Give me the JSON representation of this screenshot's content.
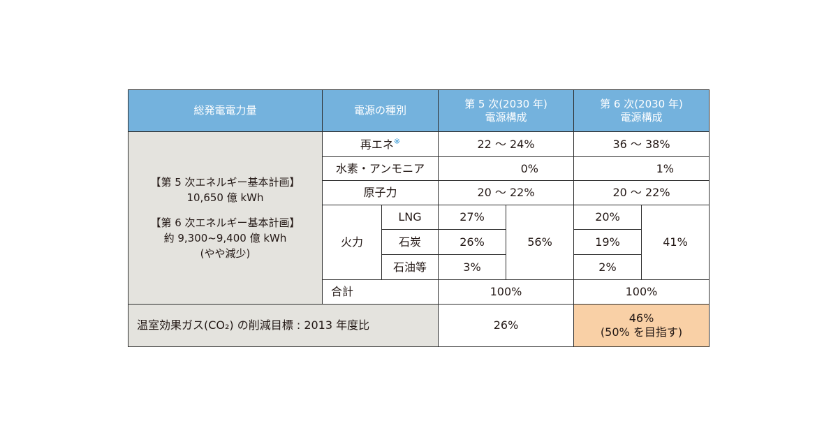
{
  "chart_data": {
    "type": "table",
    "header": {
      "total": "総発電電力量",
      "source_type": "電源の種別",
      "plan5": [
        "第 5 次(2030 年)",
        "電源構成"
      ],
      "plan6": [
        "第 6 次(2030 年)",
        "電源構成"
      ]
    },
    "total_generation": {
      "plan5_title": "【第 5 次エネルギー基本計画】",
      "plan5_value": "10,650 億 kWh",
      "plan6_title": "【第 6 次エネルギー基本計画】",
      "plan6_value": "約 9,300~9,400 億 kWh",
      "plan6_note": "(やや減少)"
    },
    "rows": {
      "renewable": {
        "label": "再エネ",
        "note_mark": "※",
        "plan5": "22 ～ 24%",
        "plan6": "36 ～ 38%"
      },
      "hydrogen": {
        "label": "水素・アンモニア",
        "plan5": "0%",
        "plan6": "1%"
      },
      "nuclear": {
        "label": "原子力",
        "plan5": "20 ～ 22%",
        "plan6": "20 ～ 22%"
      },
      "thermal": {
        "label": "火力",
        "lng": {
          "label": "LNG",
          "plan5": "27%",
          "plan6": "20%"
        },
        "coal": {
          "label": "石炭",
          "plan5": "26%",
          "plan6": "19%"
        },
        "oil": {
          "label": "石油等",
          "plan5": "3%",
          "plan6": "2%"
        },
        "plan5_total": "56%",
        "plan6_total": "41%"
      },
      "total": {
        "label": "合計",
        "plan5": "100%",
        "plan6": "100%"
      }
    },
    "ghg": {
      "label": "温室効果ガス(CO₂) の削減目標 : 2013 年度比",
      "plan5": "26%",
      "plan6_line1": "46%",
      "plan6_line2": "(50% を目指す)"
    },
    "colors": {
      "header": "#74b2dd",
      "gray": "#e4e3de",
      "highlight": "#f9d0a6",
      "note": "#1f8dd1"
    }
  }
}
